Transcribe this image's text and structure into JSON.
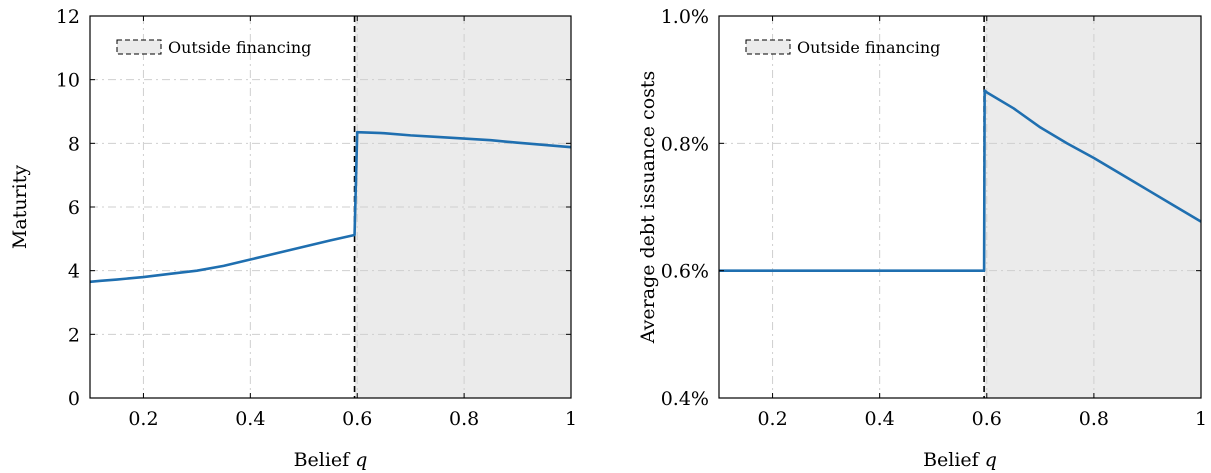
{
  "colors": {
    "series": "#1f6fb0",
    "shade": "#ebebeb",
    "frame": "#000000"
  },
  "chart_data": [
    {
      "type": "line",
      "xlabel": "Belief",
      "xlabel_var": "q",
      "ylabel": "Maturity",
      "xlim": [
        0.1,
        1.0
      ],
      "ylim": [
        0,
        12
      ],
      "xticks": [
        0.2,
        0.4,
        0.6,
        0.8,
        1.0
      ],
      "xtick_labels": [
        "0.2",
        "0.4",
        "0.6",
        "0.8",
        "1"
      ],
      "yticks": [
        0,
        2,
        4,
        6,
        8,
        10,
        12
      ],
      "ytick_labels": [
        "0",
        "2",
        "4",
        "6",
        "8",
        "10",
        "12"
      ],
      "grid": true,
      "legend": {
        "label": "Outside financing",
        "placement": "top-left"
      },
      "shaded_region": {
        "x_from": 0.595,
        "x_to": 1.0
      },
      "threshold_x": 0.595,
      "series": [
        {
          "x": [
            0.1,
            0.12,
            0.15,
            0.2,
            0.25,
            0.3,
            0.35,
            0.4,
            0.45,
            0.5,
            0.55,
            0.595,
            0.6,
            0.65,
            0.7,
            0.75,
            0.8,
            0.85,
            0.9,
            0.95,
            1.0
          ],
          "y": [
            3.65,
            3.68,
            3.72,
            3.8,
            3.9,
            4.0,
            4.15,
            4.35,
            4.55,
            4.75,
            4.95,
            5.12,
            8.35,
            8.32,
            8.25,
            8.2,
            8.15,
            8.1,
            8.02,
            7.95,
            7.88
          ]
        }
      ]
    },
    {
      "type": "line",
      "xlabel": "Belief",
      "xlabel_var": "q",
      "ylabel": "Average debt issuance costs",
      "xlim": [
        0.1,
        1.0
      ],
      "ylim": [
        0.4,
        1.0
      ],
      "xticks": [
        0.2,
        0.4,
        0.6,
        0.8,
        1.0
      ],
      "xtick_labels": [
        "0.2",
        "0.4",
        "0.6",
        "0.8",
        "1"
      ],
      "yticks": [
        0.4,
        0.6,
        0.8,
        1.0
      ],
      "ytick_labels": [
        "0.4%",
        "0.6%",
        "0.8%",
        "1.0%"
      ],
      "grid": true,
      "legend": {
        "label": "Outside financing",
        "placement": "top-left"
      },
      "shaded_region": {
        "x_from": 0.595,
        "x_to": 1.0
      },
      "threshold_x": 0.595,
      "series": [
        {
          "x": [
            0.1,
            0.2,
            0.3,
            0.4,
            0.5,
            0.595,
            0.596,
            0.6,
            0.65,
            0.7,
            0.75,
            0.8,
            0.85,
            0.9,
            0.95,
            1.0
          ],
          "y": [
            0.6,
            0.6,
            0.6,
            0.6,
            0.6,
            0.6,
            0.883,
            0.88,
            0.855,
            0.825,
            0.8,
            0.777,
            0.752,
            0.727,
            0.702,
            0.677
          ]
        }
      ]
    }
  ]
}
